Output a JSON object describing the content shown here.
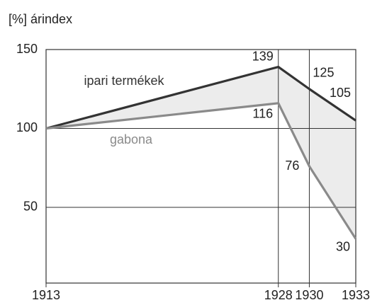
{
  "chart_data": {
    "type": "line",
    "ylabel": "[%] árindex",
    "x": [
      1913,
      1928,
      1930,
      1933
    ],
    "xlim": [
      1913,
      1933
    ],
    "xticks": [
      1913,
      1928,
      1930,
      1933
    ],
    "ylim": [
      2,
      150
    ],
    "yticks": [
      50,
      100,
      150
    ],
    "grid": true,
    "series": [
      {
        "name": "ipari termékek",
        "color": "#333333",
        "values": [
          100,
          139,
          125,
          105
        ]
      },
      {
        "name": "gabona",
        "color": "#8a8a8a",
        "values": [
          100,
          116,
          76,
          30
        ]
      }
    ]
  }
}
